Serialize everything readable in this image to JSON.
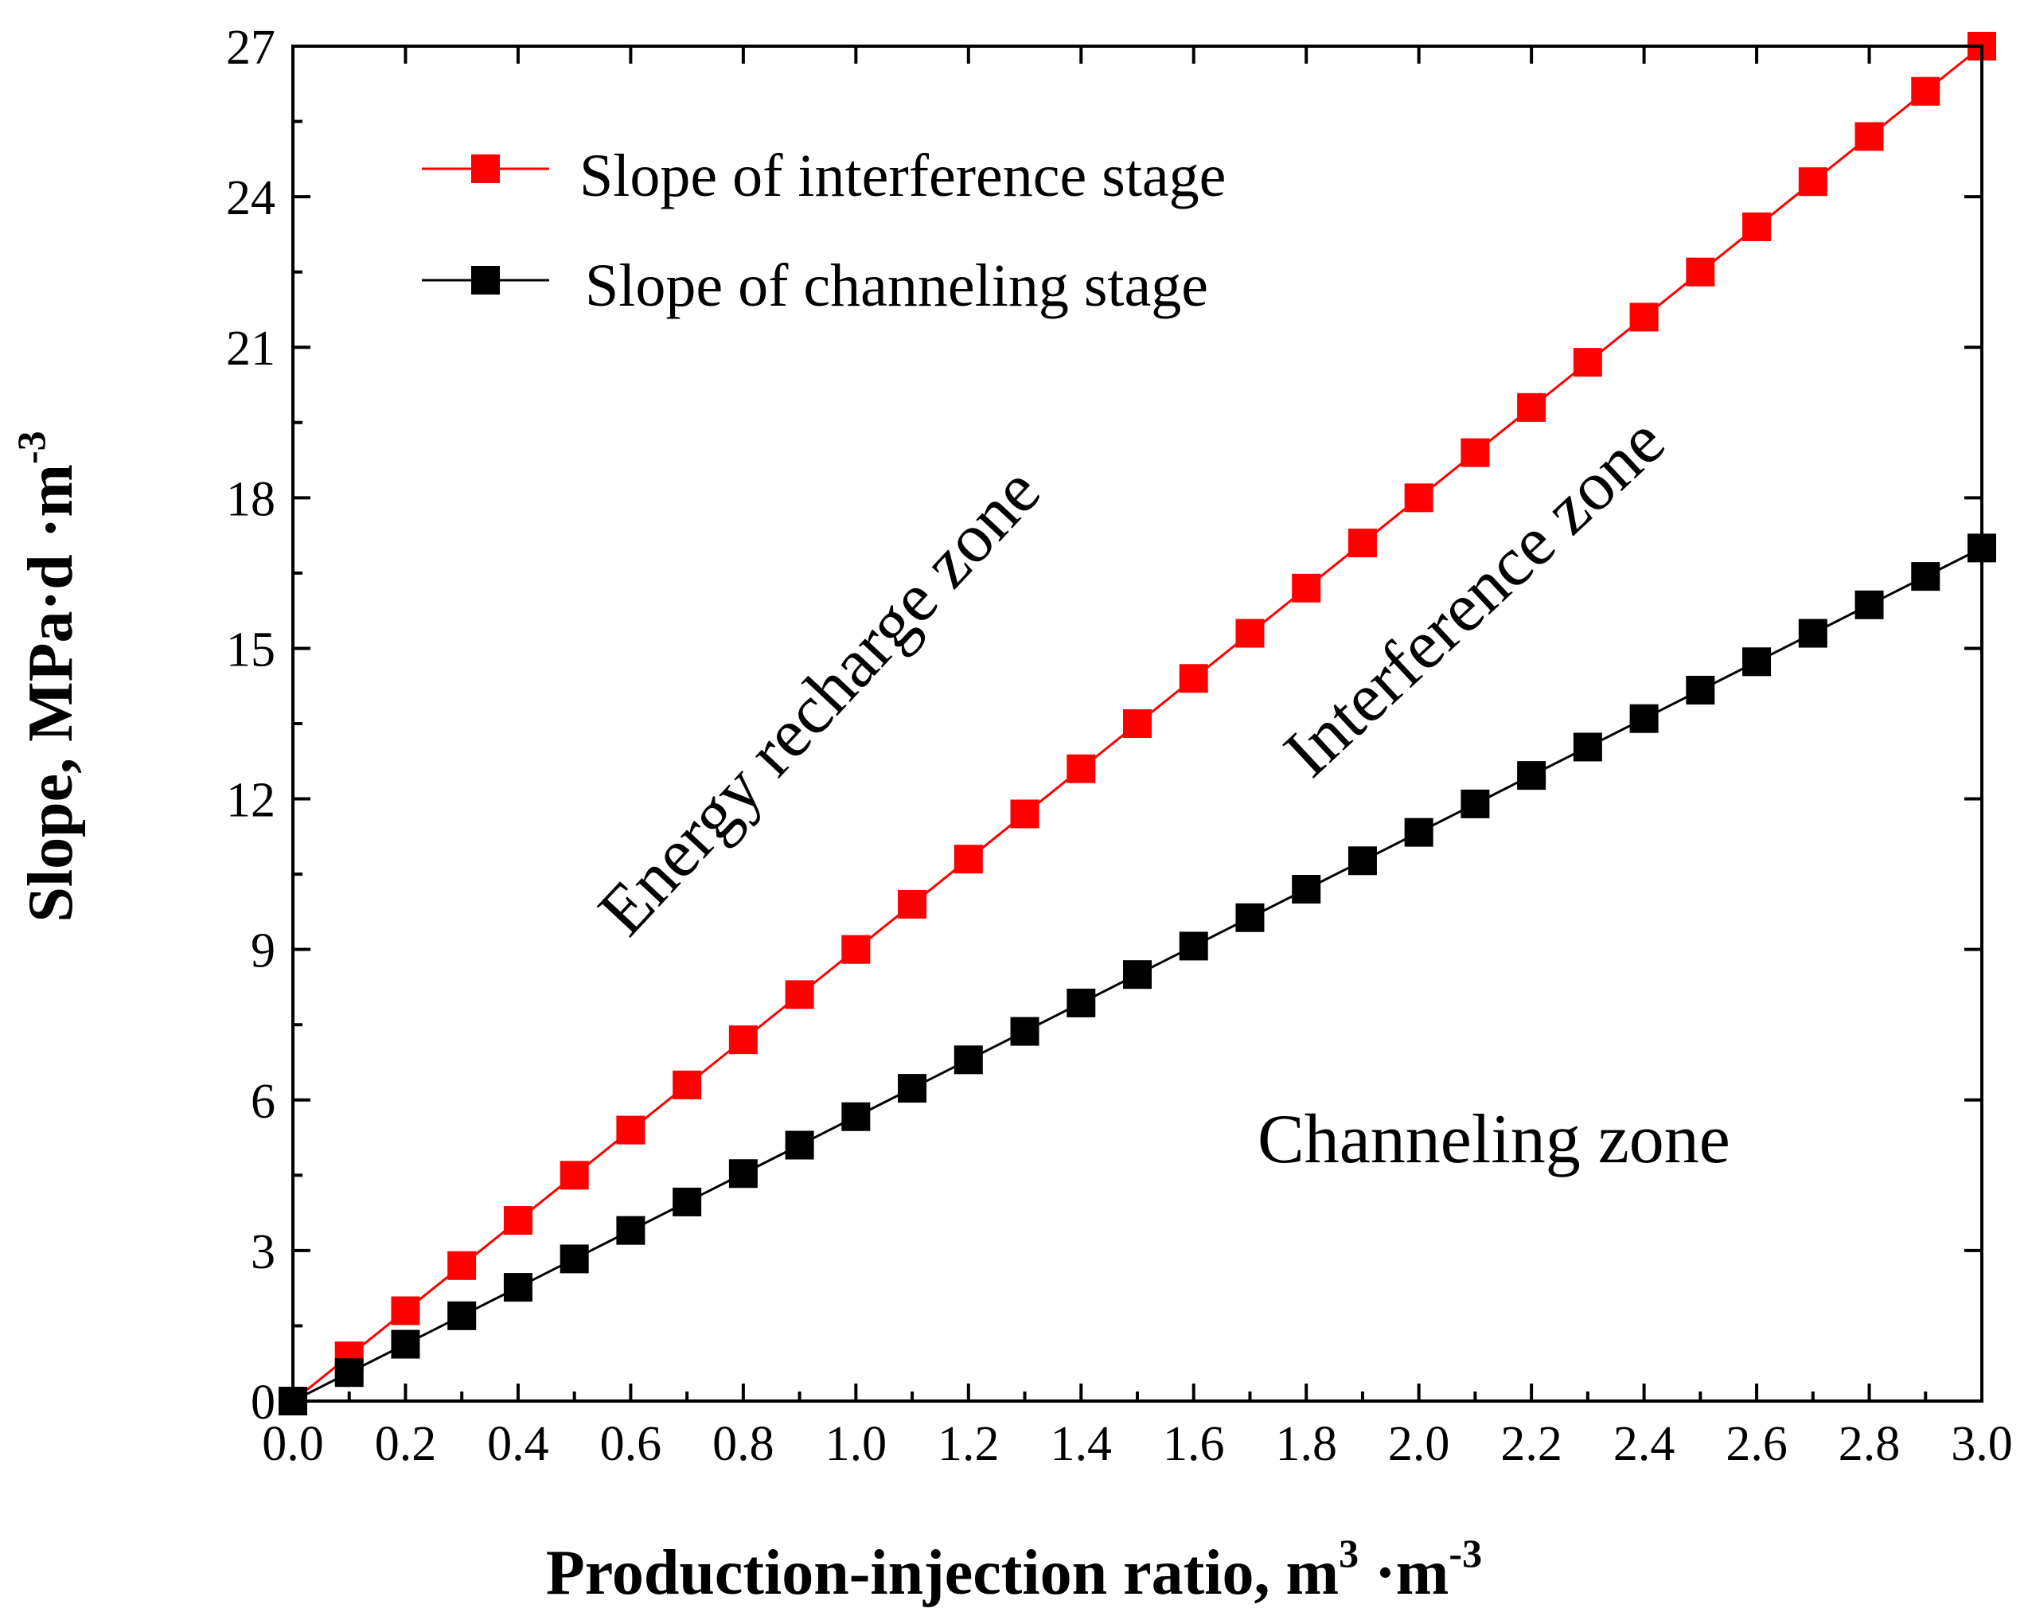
{
  "chart_data": {
    "type": "line",
    "xlabel": "Production-injection ratio, m",
    "xlabel_sup1": "3",
    "xlabel_mid": " ·m",
    "xlabel_sup2": "-3",
    "ylabel": "Slope, MPa·d ·m",
    "ylabel_sup": "-3",
    "xlim": [
      0,
      3.0
    ],
    "ylim": [
      0,
      27
    ],
    "xticks": [
      "0.0",
      "0.2",
      "0.4",
      "0.6",
      "0.8",
      "1.0",
      "1.2",
      "1.4",
      "1.6",
      "1.8",
      "2.0",
      "2.2",
      "2.4",
      "2.6",
      "2.8",
      "3.0"
    ],
    "yticks": [
      "0",
      "3",
      "6",
      "9",
      "12",
      "15",
      "18",
      "21",
      "24",
      "27"
    ],
    "x": [
      0.0,
      0.1,
      0.2,
      0.3,
      0.4,
      0.5,
      0.6,
      0.7,
      0.8,
      0.9,
      1.0,
      1.1,
      1.2,
      1.3,
      1.4,
      1.5,
      1.6,
      1.7,
      1.8,
      1.9,
      2.0,
      2.1,
      2.2,
      2.3,
      2.4,
      2.5,
      2.6,
      2.7,
      2.8,
      2.9,
      3.0
    ],
    "series": [
      {
        "name": "Slope of interference stage",
        "color": "#ff0000",
        "values": [
          0.0,
          0.9,
          1.8,
          2.7,
          3.6,
          4.5,
          5.4,
          6.3,
          7.2,
          8.1,
          9.0,
          9.9,
          10.8,
          11.7,
          12.6,
          13.5,
          14.4,
          15.3,
          16.2,
          17.1,
          18.0,
          18.9,
          19.8,
          20.7,
          21.6,
          22.5,
          23.4,
          24.3,
          25.2,
          26.1,
          27.0
        ]
      },
      {
        "name": "Slope of channeling stage",
        "color": "#000000",
        "values": [
          0.0,
          0.567,
          1.133,
          1.7,
          2.267,
          2.833,
          3.4,
          3.967,
          4.533,
          5.1,
          5.667,
          6.233,
          6.8,
          7.367,
          7.933,
          8.5,
          9.067,
          9.633,
          10.2,
          10.767,
          11.333,
          11.9,
          12.467,
          13.033,
          13.6,
          14.167,
          14.733,
          15.3,
          15.867,
          16.433,
          17.0
        ]
      }
    ],
    "annotations": [
      {
        "text": "Energy recharge zone"
      },
      {
        "text": "Interference zone"
      },
      {
        "text": "Channeling zone"
      }
    ],
    "legend_position": "top-left"
  }
}
